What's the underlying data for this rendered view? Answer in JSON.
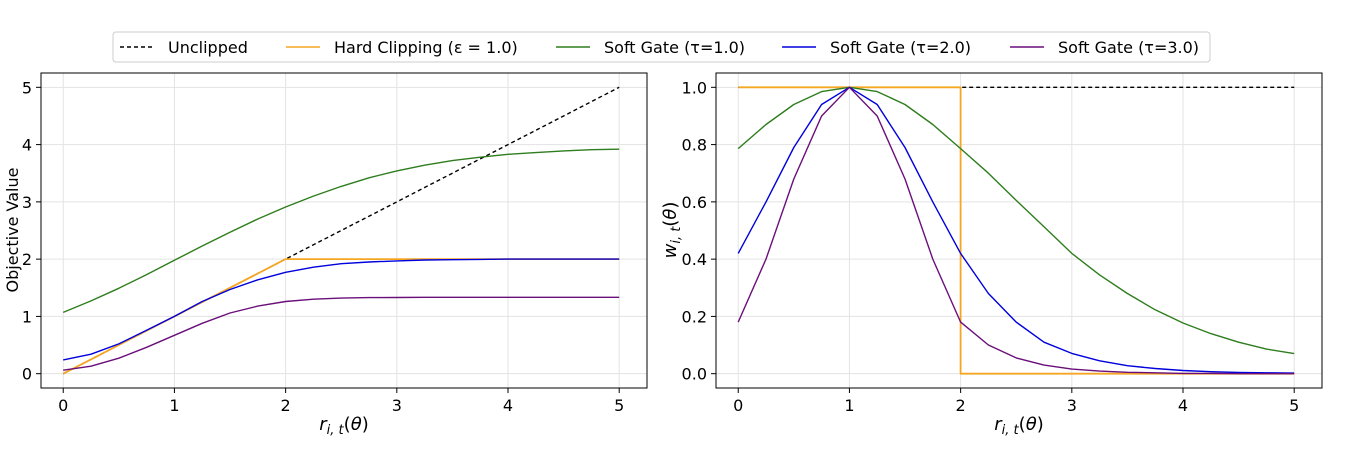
{
  "legend": {
    "entries": [
      {
        "label": "Unclipped",
        "color": "#000000",
        "dash": "4,3"
      },
      {
        "label": "Hard Clipping (ε = 1.0)",
        "color": "#f5a623",
        "dash": ""
      },
      {
        "label": "Soft Gate (τ=1.0)",
        "color": "#2e7d1e",
        "dash": ""
      },
      {
        "label": "Soft Gate (τ=2.0)",
        "color": "#0000dd",
        "dash": ""
      },
      {
        "label": "Soft Gate (τ=3.0)",
        "color": "#6a0f7a",
        "dash": ""
      }
    ]
  },
  "chart_data": [
    {
      "type": "line",
      "xlabel": "r_i,t(θ)",
      "ylabel": "Objective Value",
      "xlim": [
        -0.2,
        5.25
      ],
      "ylim": [
        -0.25,
        5.25
      ],
      "xticks": [
        0,
        1,
        2,
        3,
        4,
        5
      ],
      "yticks": [
        0,
        1,
        2,
        3,
        4,
        5
      ],
      "grid": true,
      "x": [
        0,
        0.25,
        0.5,
        0.75,
        1,
        1.25,
        1.5,
        1.75,
        2,
        2.25,
        2.5,
        2.75,
        3,
        3.25,
        3.5,
        3.75,
        4,
        4.25,
        4.5,
        4.75,
        5
      ],
      "series": [
        {
          "name": "Unclipped",
          "values": [
            0,
            0.25,
            0.5,
            0.75,
            1,
            1.25,
            1.5,
            1.75,
            2,
            2.25,
            2.5,
            2.75,
            3,
            3.25,
            3.5,
            3.75,
            4,
            4.25,
            4.5,
            4.75,
            5
          ]
        },
        {
          "name": "Hard Clipping (ε = 1.0)",
          "values": [
            0,
            0.25,
            0.5,
            0.75,
            1,
            1.25,
            1.5,
            1.75,
            2,
            2,
            2,
            2,
            2,
            2,
            2,
            2,
            2,
            2,
            2,
            2,
            2
          ]
        },
        {
          "name": "Soft Gate (τ=1.0)",
          "values": [
            1.07,
            1.27,
            1.49,
            1.73,
            1.98,
            2.23,
            2.47,
            2.7,
            2.91,
            3.1,
            3.27,
            3.42,
            3.54,
            3.64,
            3.72,
            3.78,
            3.83,
            3.86,
            3.89,
            3.91,
            3.92
          ]
        },
        {
          "name": "Soft Gate (τ=2.0)",
          "values": [
            0.24,
            0.34,
            0.52,
            0.76,
            1.0,
            1.26,
            1.47,
            1.64,
            1.77,
            1.86,
            1.92,
            1.95,
            1.97,
            1.985,
            1.99,
            1.995,
            2.0,
            2.0,
            2.0,
            2.0,
            2.0
          ]
        },
        {
          "name": "Soft Gate (τ=3.0)",
          "values": [
            0.06,
            0.13,
            0.27,
            0.46,
            0.67,
            0.88,
            1.06,
            1.18,
            1.26,
            1.3,
            1.32,
            1.328,
            1.331,
            1.333,
            1.333,
            1.333,
            1.333,
            1.333,
            1.333,
            1.333,
            1.333
          ]
        }
      ]
    },
    {
      "type": "line",
      "xlabel": "r_i,t(θ)",
      "ylabel": "w_i,t(θ)",
      "xlim": [
        -0.2,
        5.25
      ],
      "ylim": [
        -0.05,
        1.05
      ],
      "xticks": [
        0,
        1,
        2,
        3,
        4,
        5
      ],
      "yticks": [
        "0.0",
        "0.2",
        "0.4",
        "0.6",
        "0.8",
        "1.0"
      ],
      "grid": true,
      "x": [
        0,
        0.25,
        0.5,
        0.75,
        1,
        1.25,
        1.5,
        1.75,
        2,
        2.25,
        2.5,
        2.75,
        3,
        3.25,
        3.5,
        3.75,
        4,
        4.25,
        4.5,
        4.75,
        5
      ],
      "series": [
        {
          "name": "Unclipped",
          "values": [
            1,
            1,
            1,
            1,
            1,
            1,
            1,
            1,
            1,
            1,
            1,
            1,
            1,
            1,
            1,
            1,
            1,
            1,
            1,
            1,
            1
          ]
        },
        {
          "name": "Hard Clipping (ε = 1.0)",
          "x": [
            0,
            2,
            2,
            5
          ],
          "values": [
            1,
            1,
            0,
            0
          ]
        },
        {
          "name": "Soft Gate (τ=1.0)",
          "values": [
            0.786,
            0.87,
            0.94,
            0.985,
            1.0,
            0.985,
            0.94,
            0.87,
            0.786,
            0.7,
            0.605,
            0.513,
            0.42,
            0.345,
            0.28,
            0.223,
            0.177,
            0.14,
            0.11,
            0.086,
            0.07
          ]
        },
        {
          "name": "Soft Gate (τ=2.0)",
          "values": [
            0.42,
            0.6,
            0.79,
            0.94,
            1.0,
            0.94,
            0.79,
            0.6,
            0.42,
            0.28,
            0.18,
            0.11,
            0.071,
            0.045,
            0.028,
            0.018,
            0.011,
            0.007,
            0.004,
            0.003,
            0.002
          ]
        },
        {
          "name": "Soft Gate (τ=3.0)",
          "values": [
            0.18,
            0.4,
            0.68,
            0.9,
            1.0,
            0.9,
            0.68,
            0.4,
            0.18,
            0.1,
            0.055,
            0.03,
            0.016,
            0.009,
            0.005,
            0.003,
            0.001,
            0.001,
            0.0,
            0.0,
            0.0
          ]
        }
      ]
    }
  ]
}
